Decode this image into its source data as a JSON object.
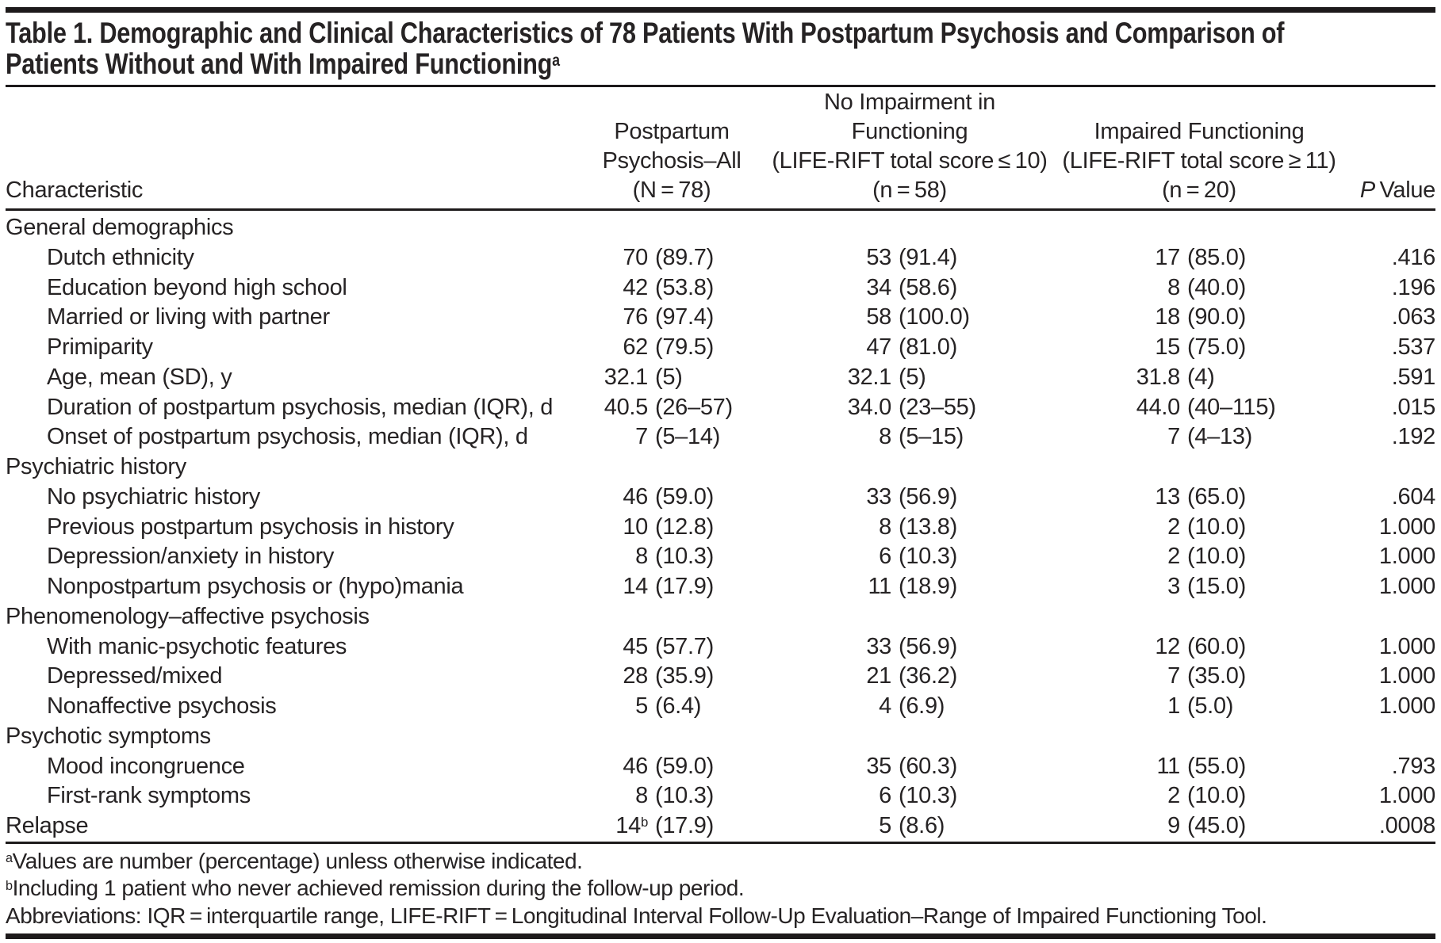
{
  "title": {
    "line1": "Table 1. Demographic and Clinical Characteristics of 78 Patients With Postpartum Psychosis and Comparison of",
    "line2": "Patients Without and With Impaired Functioning",
    "superscript": "a"
  },
  "header": {
    "characteristic": "Characteristic",
    "col_all": {
      "lines": [
        "Postpartum",
        "Psychosis–All",
        "(N = 78)"
      ]
    },
    "col_no_impairment": {
      "lines": [
        "No Impairment in",
        "Functioning",
        "(LIFE-RIFT total score ≤ 10)",
        "(n = 58)"
      ]
    },
    "col_impaired": {
      "lines": [
        "Impaired Functioning",
        "(LIFE-RIFT total score ≥ 11)",
        "(n = 20)"
      ]
    },
    "p_value": {
      "italic": "P",
      "rest": " Value"
    }
  },
  "table": {
    "rows": [
      {
        "type": "section",
        "label": "General demographics"
      },
      {
        "type": "item",
        "label": "Dutch ethnicity",
        "cells": [
          {
            "n": "70",
            "p": "(89.7)"
          },
          {
            "n": "53",
            "p": "(91.4)"
          },
          {
            "n": "17",
            "p": "(85.0)"
          }
        ],
        "pv": ".416"
      },
      {
        "type": "item",
        "label": "Education beyond high school",
        "cells": [
          {
            "n": "42",
            "p": "(53.8)"
          },
          {
            "n": "34",
            "p": "(58.6)"
          },
          {
            "n": "8",
            "p": "(40.0)"
          }
        ],
        "pv": ".196"
      },
      {
        "type": "item",
        "label": "Married or living with partner",
        "cells": [
          {
            "n": "76",
            "p": "(97.4)"
          },
          {
            "n": "58",
            "p": "(100.0)"
          },
          {
            "n": "18",
            "p": "(90.0)"
          }
        ],
        "pv": ".063"
      },
      {
        "type": "item",
        "label": "Primiparity",
        "cells": [
          {
            "n": "62",
            "p": "(79.5)"
          },
          {
            "n": "47",
            "p": "(81.0)"
          },
          {
            "n": "15",
            "p": "(75.0)"
          }
        ],
        "pv": ".537"
      },
      {
        "type": "item",
        "label": "Age, mean (SD), y",
        "cells": [
          {
            "n": "32.1",
            "p": "(5)"
          },
          {
            "n": "32.1",
            "p": "(5)"
          },
          {
            "n": "31.8",
            "p": "(4)"
          }
        ],
        "pv": ".591"
      },
      {
        "type": "item",
        "label": "Duration of postpartum psychosis, median (IQR), d",
        "cells": [
          {
            "n": "40.5",
            "p": "(26–57)"
          },
          {
            "n": "34.0",
            "p": "(23–55)"
          },
          {
            "n": "44.0",
            "p": "(40–115)"
          }
        ],
        "pv": ".015"
      },
      {
        "type": "item",
        "label": "Onset of postpartum psychosis, median (IQR), d",
        "cells": [
          {
            "n": "7",
            "p": "(5–14)"
          },
          {
            "n": "8",
            "p": "(5–15)"
          },
          {
            "n": "7",
            "p": "(4–13)"
          }
        ],
        "pv": ".192"
      },
      {
        "type": "section",
        "label": "Psychiatric history"
      },
      {
        "type": "item",
        "label": "No psychiatric history",
        "cells": [
          {
            "n": "46",
            "p": "(59.0)"
          },
          {
            "n": "33",
            "p": "(56.9)"
          },
          {
            "n": "13",
            "p": "(65.0)"
          }
        ],
        "pv": ".604"
      },
      {
        "type": "item",
        "label": "Previous postpartum psychosis in history",
        "cells": [
          {
            "n": "10",
            "p": "(12.8)"
          },
          {
            "n": "8",
            "p": "(13.8)"
          },
          {
            "n": "2",
            "p": "(10.0)"
          }
        ],
        "pv": "1.000"
      },
      {
        "type": "item",
        "label": "Depression/anxiety in history",
        "cells": [
          {
            "n": "8",
            "p": "(10.3)"
          },
          {
            "n": "6",
            "p": "(10.3)"
          },
          {
            "n": "2",
            "p": "(10.0)"
          }
        ],
        "pv": "1.000"
      },
      {
        "type": "item",
        "label": "Nonpostpartum psychosis or (hypo)mania",
        "cells": [
          {
            "n": "14",
            "p": "(17.9)"
          },
          {
            "n": "11",
            "p": "(18.9)"
          },
          {
            "n": "3",
            "p": "(15.0)"
          }
        ],
        "pv": "1.000"
      },
      {
        "type": "section",
        "label": "Phenomenology–affective psychosis"
      },
      {
        "type": "item",
        "label": "With manic-psychotic features",
        "cells": [
          {
            "n": "45",
            "p": "(57.7)"
          },
          {
            "n": "33",
            "p": "(56.9)"
          },
          {
            "n": "12",
            "p": "(60.0)"
          }
        ],
        "pv": "1.000"
      },
      {
        "type": "item",
        "label": "Depressed/mixed",
        "cells": [
          {
            "n": "28",
            "p": "(35.9)"
          },
          {
            "n": "21",
            "p": "(36.2)"
          },
          {
            "n": "7",
            "p": "(35.0)"
          }
        ],
        "pv": "1.000"
      },
      {
        "type": "item",
        "label": "Nonaffective psychosis",
        "cells": [
          {
            "n": "5",
            "p": "(6.4)"
          },
          {
            "n": "4",
            "p": "(6.9)"
          },
          {
            "n": "1",
            "p": "(5.0)"
          }
        ],
        "pv": "1.000"
      },
      {
        "type": "section",
        "label": "Psychotic symptoms"
      },
      {
        "type": "item",
        "label": "Mood incongruence",
        "cells": [
          {
            "n": "46",
            "p": "(59.0)"
          },
          {
            "n": "35",
            "p": "(60.3)"
          },
          {
            "n": "11",
            "p": "(55.0)"
          }
        ],
        "pv": ".793"
      },
      {
        "type": "item",
        "label": "First-rank symptoms",
        "cells": [
          {
            "n": "8",
            "p": "(10.3)"
          },
          {
            "n": "6",
            "p": "(10.3)"
          },
          {
            "n": "2",
            "p": "(10.0)"
          }
        ],
        "pv": "1.000"
      },
      {
        "type": "flush",
        "label": "Relapse",
        "cells": [
          {
            "n": "14",
            "sup": "b",
            "p": "(17.9)"
          },
          {
            "n": "5",
            "p": "(8.6)"
          },
          {
            "n": "9",
            "p": "(45.0)"
          }
        ],
        "pv": ".0008"
      }
    ]
  },
  "footnotes": {
    "a": {
      "marker": "a",
      "text": "Values are number (percentage) unless otherwise indicated."
    },
    "b": {
      "marker": "b",
      "text": "Including 1 patient who never achieved remission during the follow-up period."
    },
    "abbreviations": "Abbreviations: IQR = interquartile range, LIFE-RIFT = Longitudinal Interval Follow-Up Evaluation–Range of Impaired Functioning Tool."
  },
  "colors": {
    "background": "#ffffff",
    "text": "#262324",
    "rule": "#1d1a1b"
  }
}
